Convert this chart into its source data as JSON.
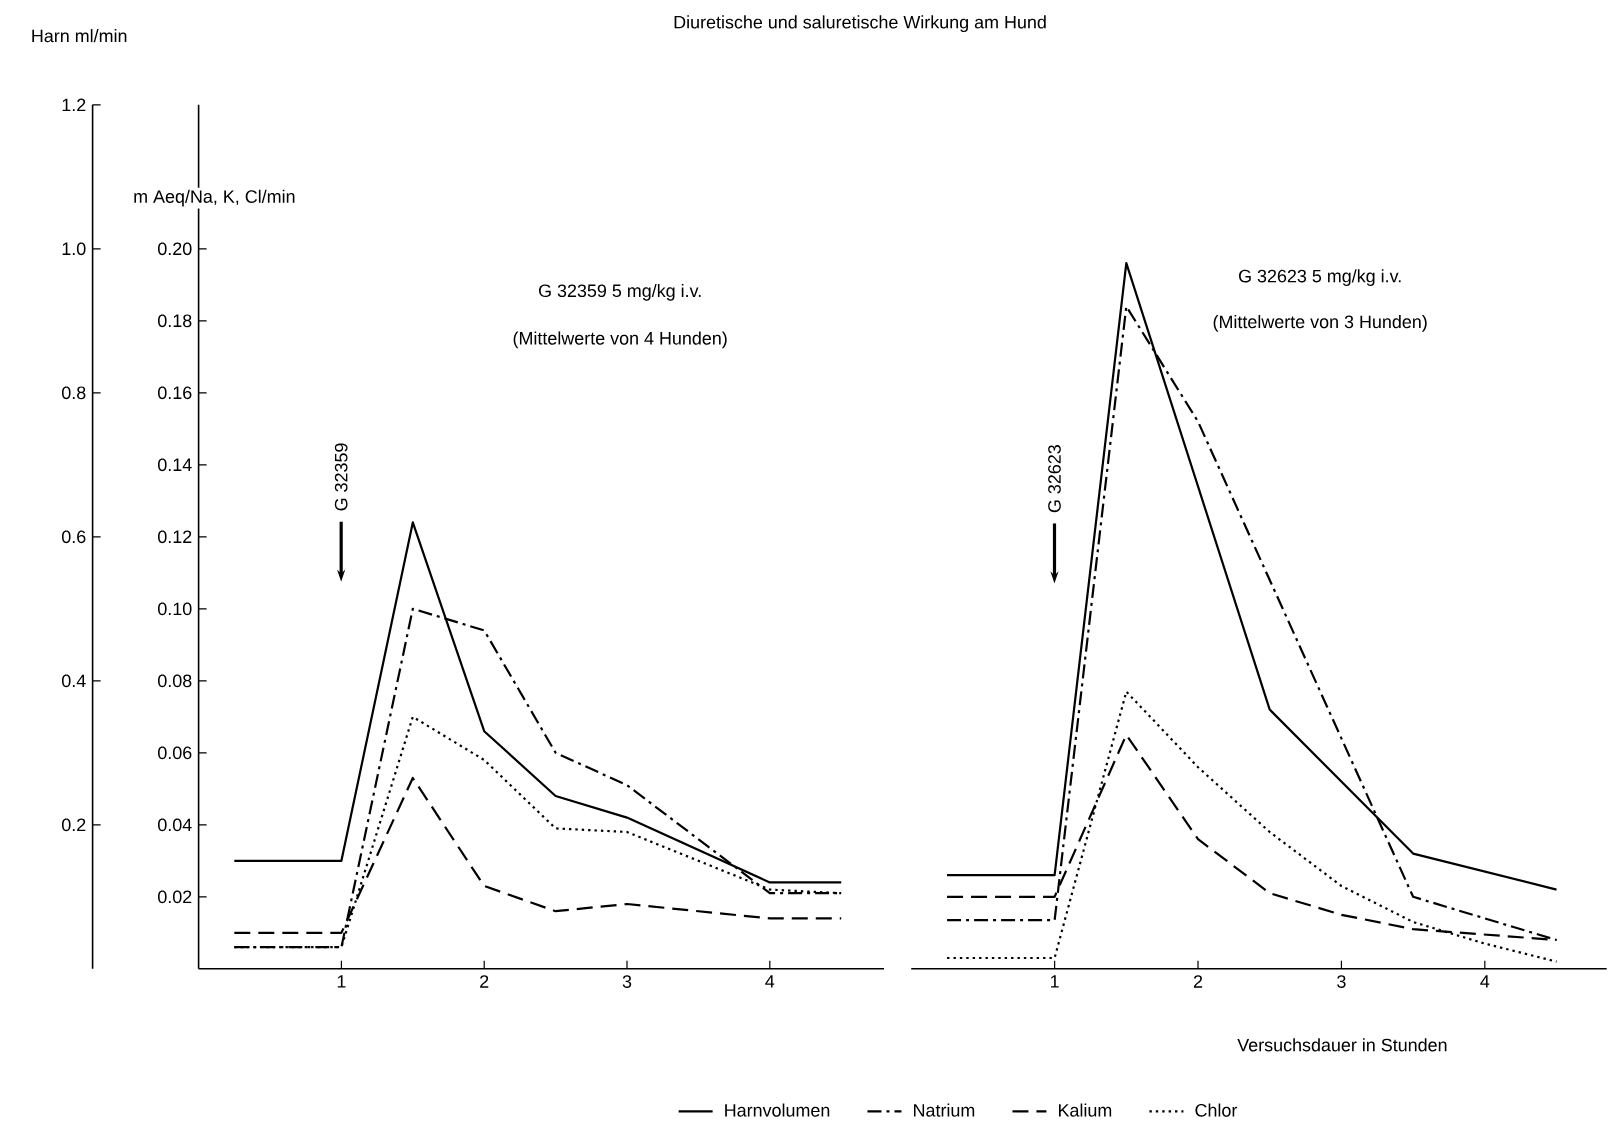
{
  "chart_data": [
    {
      "type": "line",
      "title": "Diuretische und saluretische Wirkung am Hund",
      "ylabel": "m Aeq/Na, K, Cl/min",
      "y2label": "Harn ml/min",
      "annotations": [
        "G 32359  5 mg/kg i.v.",
        "(Mittelwerte von 4  Hunden)",
        "G 32359"
      ],
      "xlim": [
        0,
        4.8
      ],
      "xticks": [
        1,
        2,
        3,
        4
      ],
      "ylim": [
        0,
        0.24
      ],
      "yticks": [
        0.02,
        0.04,
        0.06,
        0.08,
        {
          "value": 0.1,
          "label": "0.10"
        },
        0.12,
        0.14,
        0.16,
        0.18,
        {
          "value": 0.2,
          "label": "0.20"
        }
      ],
      "y2lim": [
        0,
        1.2
      ],
      "y2ticks": [
        0.2,
        0.4,
        0.6,
        0.8,
        {
          "value": 1.0,
          "label": "1.0"
        },
        1.2
      ],
      "legend": "bottom",
      "marker": "none",
      "series": [
        {
          "name": "Harnvolumen",
          "axis": "y2",
          "color": "#000000",
          "line_style": "solid",
          "x": [
            0.25,
            1,
            1.5,
            2,
            2.5,
            3,
            4,
            4.5
          ],
          "values": [
            0.15,
            0.15,
            0.62,
            0.33,
            0.24,
            0.21,
            0.12,
            0.12
          ]
        },
        {
          "name": "Natrium",
          "color": "#000000",
          "line_style": "dashdot",
          "x": [
            0.25,
            1,
            1.5,
            2,
            2.5,
            3,
            4,
            4.5
          ],
          "values": [
            0.006,
            0.006,
            0.1,
            0.094,
            0.06,
            0.051,
            0.021,
            0.021
          ]
        },
        {
          "name": "Kalium",
          "color": "#000000",
          "line_style": "dashed",
          "x": [
            0.25,
            1,
            1.5,
            2,
            2.5,
            3,
            4,
            4.5
          ],
          "values": [
            0.01,
            0.01,
            0.053,
            0.023,
            0.016,
            0.018,
            0.014,
            0.014
          ]
        },
        {
          "name": "Chlor",
          "color": "#000000",
          "line_style": "dotted",
          "x": [
            0.25,
            1,
            1.5,
            2,
            2.5,
            3,
            4,
            4.5
          ],
          "values": [
            0.006,
            0.006,
            0.07,
            0.058,
            0.039,
            0.038,
            0.022,
            0.021
          ]
        }
      ]
    },
    {
      "type": "line",
      "xlabel": "Versuchsdauer in Stunden",
      "annotations": [
        "G 32623  5 mg/kg i.v.",
        "(Mittelwerte von 3 Hunden)",
        "G 32623"
      ],
      "xlim": [
        0,
        4.85
      ],
      "xticks": [
        1,
        2,
        3,
        4
      ],
      "yticks": [
        0.02,
        0.04,
        0.06,
        0.08,
        0.12,
        0.14,
        0.16,
        0.18
      ],
      "y2ticks": [
        0.2,
        0.4,
        0.6,
        0.8,
        1.2
      ],
      "tick_labels": "x",
      "marker": "none",
      "series": [
        {
          "axis": "y2",
          "color": "#000000",
          "line_style": "solid",
          "x": [
            0.25,
            1,
            1.5,
            2.5,
            3.5,
            4.5
          ],
          "values": [
            0.13,
            0.13,
            0.98,
            0.36,
            0.16,
            0.11
          ]
        },
        {
          "color": "#000000",
          "line_style": "dashdot",
          "x": [
            0.25,
            1,
            1.5,
            2,
            3.5,
            4.5
          ],
          "values": [
            0.0135,
            0.0135,
            0.184,
            0.152,
            0.02,
            0.008
          ]
        },
        {
          "color": "#000000",
          "line_style": "dashed",
          "x": [
            0.25,
            1,
            1.5,
            2,
            2.5,
            3,
            3.5,
            4.5
          ],
          "values": [
            0.02,
            0.02,
            0.065,
            0.036,
            0.021,
            0.015,
            0.011,
            0.008
          ]
        },
        {
          "color": "#000000",
          "line_style": "dotted",
          "x": [
            0.25,
            1,
            1.5,
            2,
            2.5,
            3,
            3.5,
            4,
            4.5
          ],
          "values": [
            0.003,
            0.003,
            0.077,
            0.056,
            0.038,
            0.023,
            0.013,
            0.007,
            0.002
          ]
        }
      ]
    }
  ]
}
